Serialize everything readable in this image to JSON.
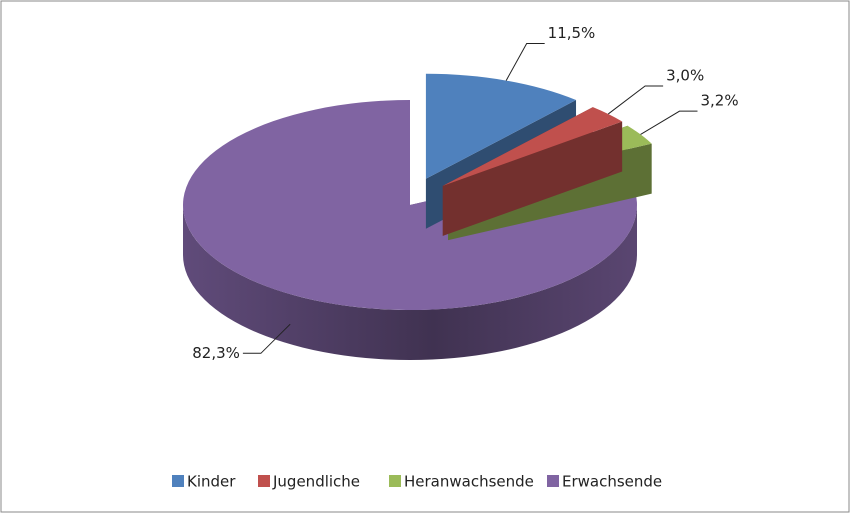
{
  "chart_data": {
    "type": "pie",
    "categories": [
      "Kinder",
      "Jugendliche",
      "Heranwachsende",
      "Erwachsende"
    ],
    "values": [
      11.5,
      3.0,
      3.2,
      82.3
    ],
    "value_labels": [
      "11,5%",
      "3,0%",
      "3,2%",
      "82,3%"
    ],
    "colors": [
      "#4f81bd",
      "#c0504d",
      "#9bbb59",
      "#8064a2"
    ],
    "legend": "bottom"
  }
}
